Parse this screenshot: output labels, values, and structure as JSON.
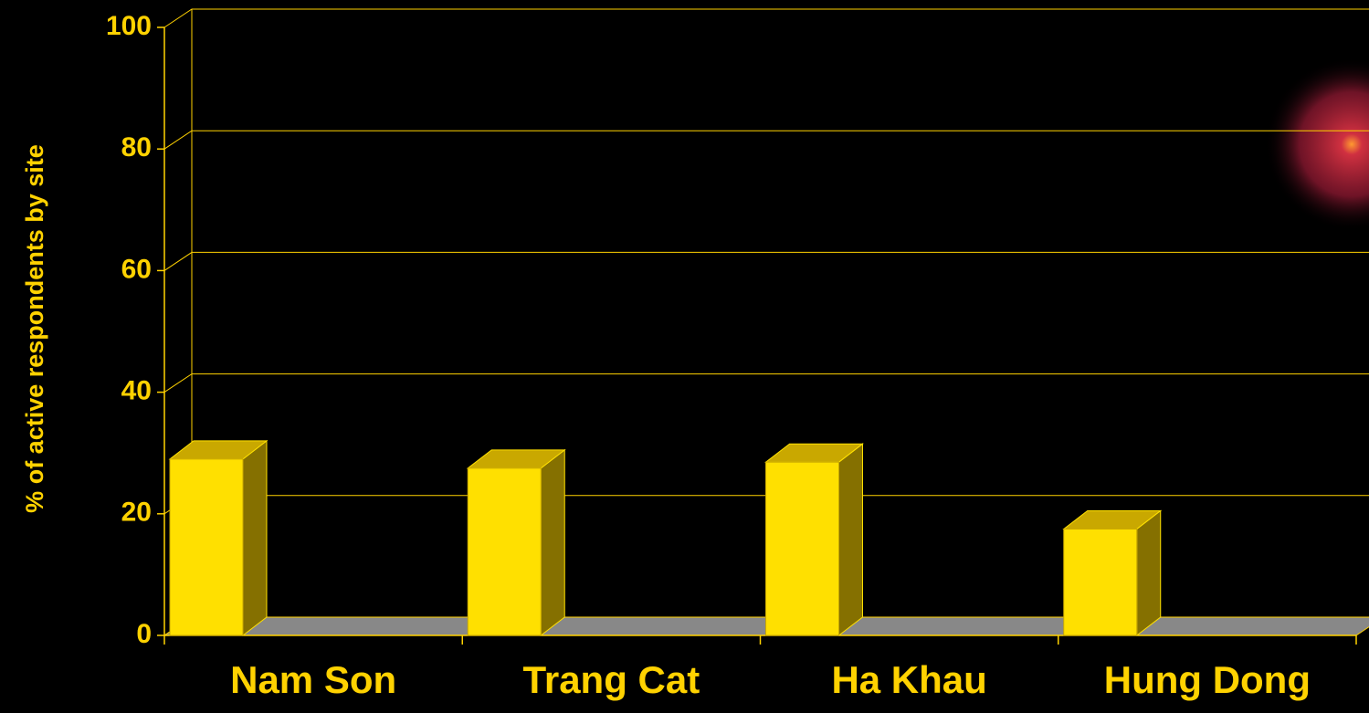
{
  "chart_data": {
    "type": "bar3d",
    "ylabel": "% of active respondents by site",
    "categories": [
      "Nam Son",
      "Trang Cat",
      "Ha Khau",
      "Hung Dong"
    ],
    "values": [
      29,
      27.5,
      28.5,
      17.5
    ],
    "color": "#ffe000",
    "ylim": [
      0,
      100
    ],
    "yticks": [
      0,
      20,
      40,
      60,
      80,
      100
    ],
    "grid": true
  }
}
